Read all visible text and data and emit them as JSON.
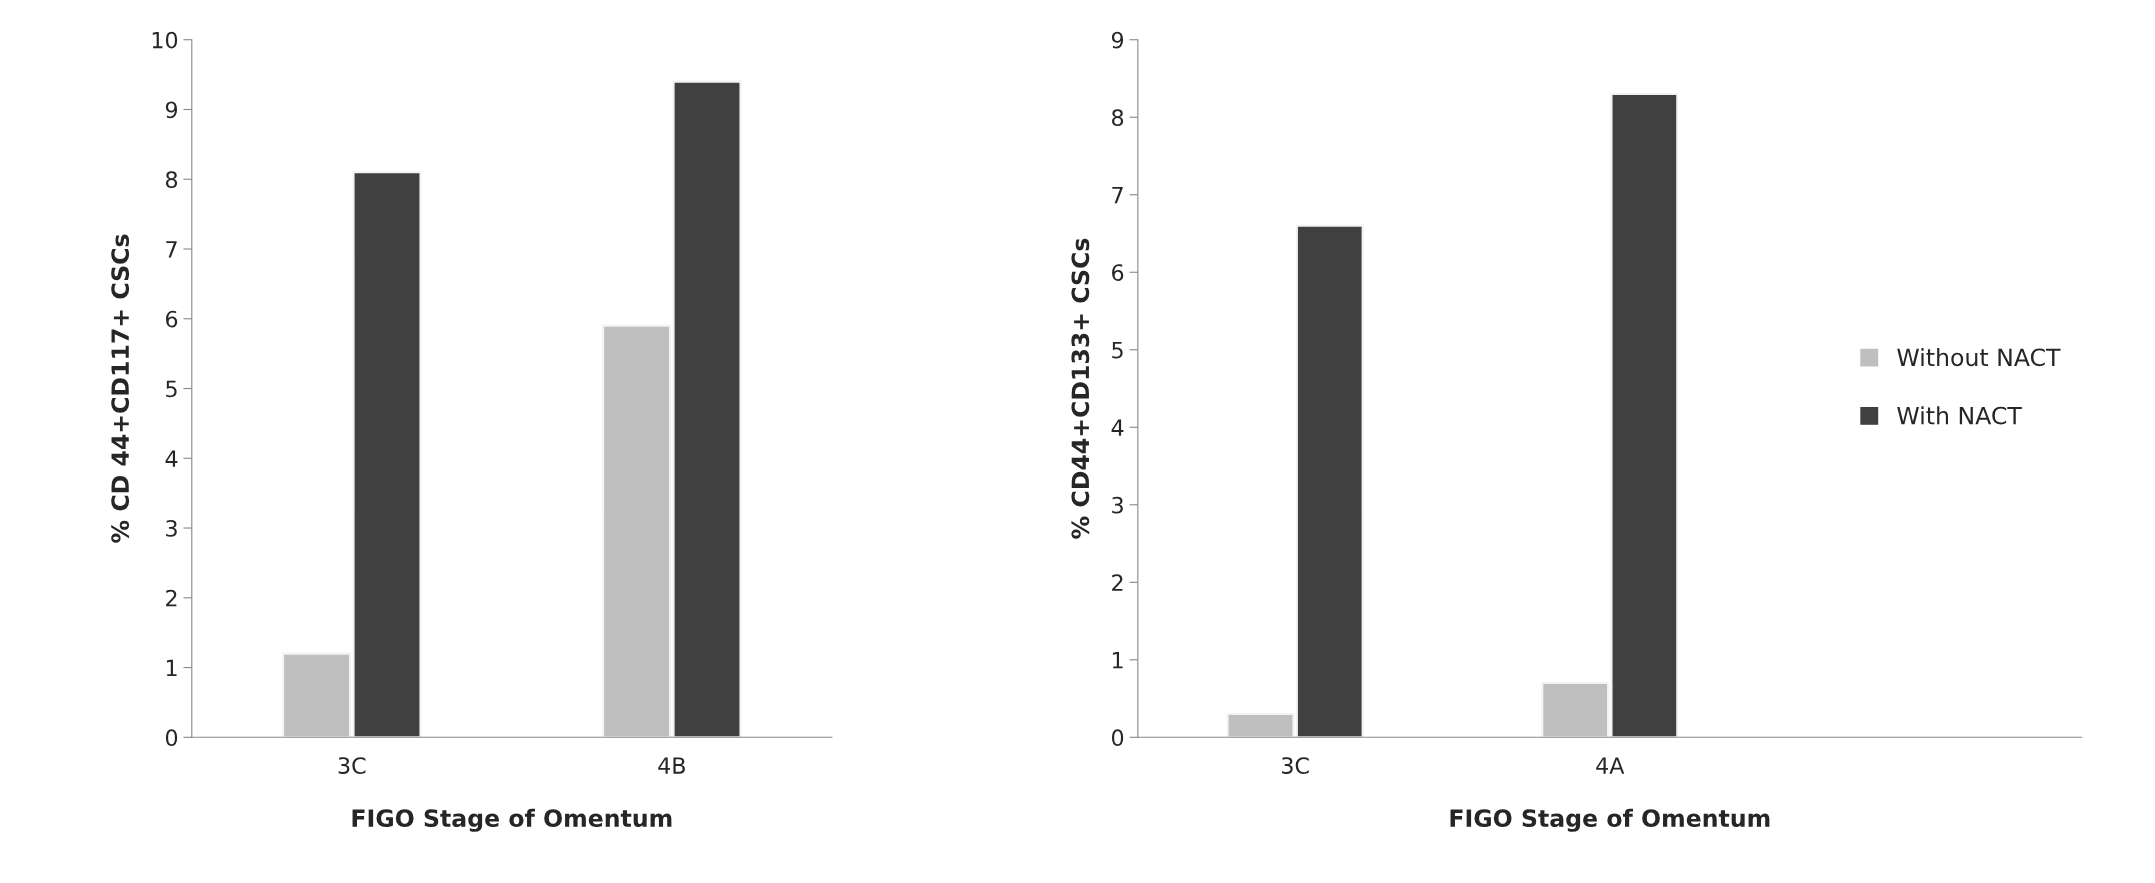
{
  "chart_data": [
    {
      "type": "bar",
      "xlabel": "FIGO Stage of Omentum",
      "ylabel": "% CD 44+CD117+ CSCs",
      "categories": [
        "3C",
        "4B"
      ],
      "ylim": [
        0,
        10
      ],
      "yticks": [
        0,
        1,
        2,
        3,
        4,
        5,
        6,
        7,
        8,
        9,
        10
      ],
      "grid": false,
      "legend": false,
      "series": [
        {
          "color": "#bfbfbf",
          "values": [
            1.2,
            5.9
          ]
        },
        {
          "color": "#404040",
          "values": [
            8.1,
            9.4
          ]
        }
      ]
    },
    {
      "type": "bar",
      "xlabel": "FIGO Stage of Omentum",
      "ylabel": "% CD44+CD133+ CSCs",
      "categories": [
        "3C",
        "4A",
        null
      ],
      "ylim": [
        0,
        9
      ],
      "yticks": [
        0,
        1,
        2,
        3,
        4,
        5,
        6,
        7,
        8,
        9
      ],
      "grid": false,
      "legend": "right",
      "series": [
        {
          "name": "Without NACT",
          "color": "#bfbfbf",
          "values": [
            0.3,
            0.7,
            null
          ]
        },
        {
          "name": "With NACT",
          "color": "#404040",
          "values": [
            6.6,
            8.3,
            null
          ]
        }
      ]
    }
  ]
}
